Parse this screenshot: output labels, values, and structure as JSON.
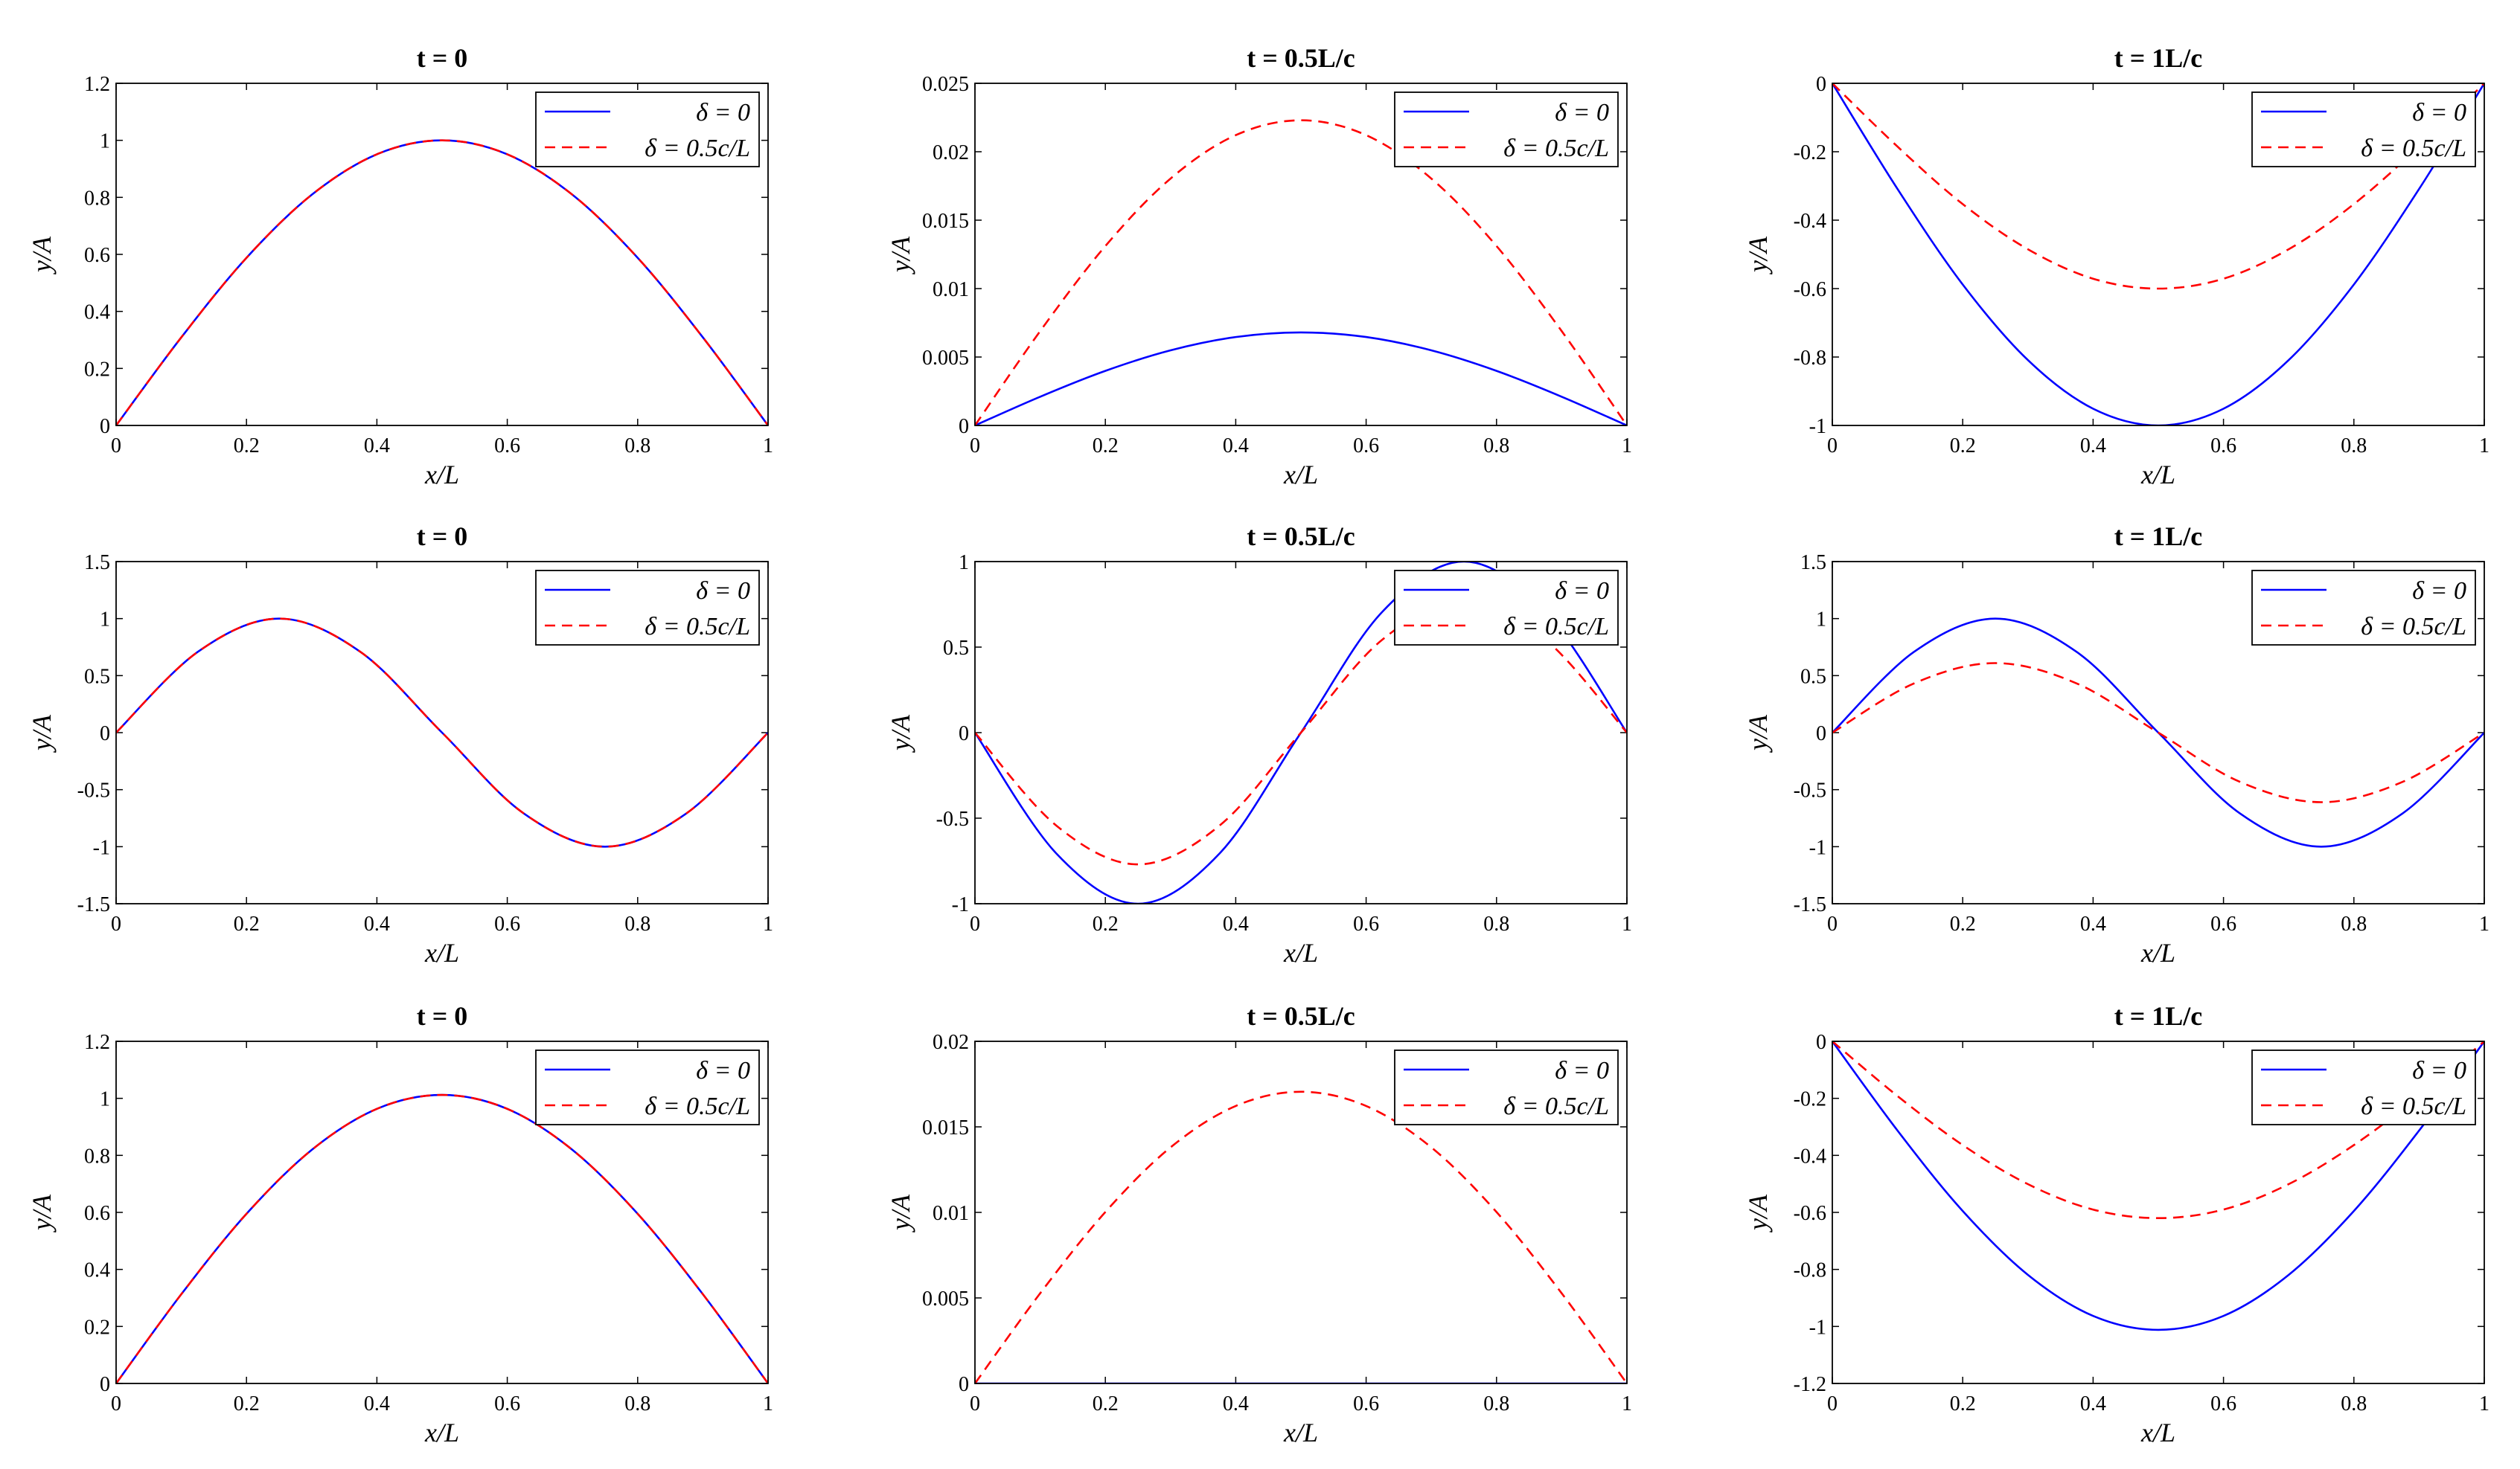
{
  "chart_data": [
    {
      "type": "line",
      "title": "t = 0",
      "xlabel": "x/L",
      "ylabel": "y/A",
      "xlim": [
        0,
        1
      ],
      "ylim": [
        0,
        1.2
      ],
      "xticks": [
        "0",
        "0.2",
        "0.4",
        "0.6",
        "0.8",
        "1"
      ],
      "yticks": [
        "0",
        "0.2",
        "0.4",
        "0.6",
        "0.8",
        "1",
        "1.2"
      ],
      "legend": "top-right",
      "grid": false,
      "series": [
        {
          "name": "δ = 0",
          "color": "#0000ff",
          "dash": "solid",
          "x": [
            0,
            0.1,
            0.2,
            0.3,
            0.4,
            0.5,
            0.6,
            0.7,
            0.8,
            0.9,
            1
          ],
          "y": [
            0,
            0.309,
            0.588,
            0.809,
            0.951,
            1,
            0.951,
            0.809,
            0.588,
            0.309,
            0
          ]
        },
        {
          "name": "δ = 0.5c/L",
          "color": "#ff0000",
          "dash": "dashed",
          "x": [
            0,
            0.1,
            0.2,
            0.3,
            0.4,
            0.5,
            0.6,
            0.7,
            0.8,
            0.9,
            1
          ],
          "y": [
            0,
            0.309,
            0.588,
            0.809,
            0.951,
            1,
            0.951,
            0.809,
            0.588,
            0.309,
            0
          ]
        }
      ]
    },
    {
      "type": "line",
      "title": "t = 0.5L/c",
      "xlabel": "x/L",
      "ylabel": "y/A",
      "xlim": [
        0,
        1
      ],
      "ylim": [
        0,
        0.025
      ],
      "xticks": [
        "0",
        "0.2",
        "0.4",
        "0.6",
        "0.8",
        "1"
      ],
      "yticks": [
        "0",
        "0.005",
        "0.01",
        "0.015",
        "0.02",
        "0.025"
      ],
      "legend": "top-right",
      "grid": false,
      "series": [
        {
          "name": "δ = 0",
          "color": "#0000ff",
          "dash": "solid",
          "x": [
            0,
            0.1,
            0.2,
            0.3,
            0.4,
            0.5,
            0.6,
            0.7,
            0.8,
            0.9,
            1
          ],
          "y": [
            0,
            0.0021,
            0.00399,
            0.00549,
            0.00646,
            0.0068,
            0.00646,
            0.00549,
            0.00399,
            0.0021,
            0
          ]
        },
        {
          "name": "δ = 0.5c/L",
          "color": "#ff0000",
          "dash": "dashed",
          "x": [
            0,
            0.1,
            0.2,
            0.3,
            0.4,
            0.5,
            0.6,
            0.7,
            0.8,
            0.9,
            1
          ],
          "y": [
            0,
            0.00689,
            0.01311,
            0.01804,
            0.02121,
            0.0223,
            0.02121,
            0.01804,
            0.01311,
            0.00689,
            0
          ]
        }
      ]
    },
    {
      "type": "line",
      "title": "t = 1L/c",
      "xlabel": "x/L",
      "ylabel": "y/A",
      "xlim": [
        0,
        1
      ],
      "ylim": [
        -1,
        0
      ],
      "xticks": [
        "0",
        "0.2",
        "0.4",
        "0.6",
        "0.8",
        "1"
      ],
      "yticks": [
        "-1",
        "-0.8",
        "-0.6",
        "-0.4",
        "-0.2",
        "0"
      ],
      "legend": "top-right",
      "grid": false,
      "series": [
        {
          "name": "δ = 0",
          "color": "#0000ff",
          "dash": "solid",
          "x": [
            0,
            0.1,
            0.2,
            0.3,
            0.4,
            0.5,
            0.6,
            0.7,
            0.8,
            0.9,
            1
          ],
          "y": [
            0,
            -0.309,
            -0.588,
            -0.809,
            -0.951,
            -1,
            -0.951,
            -0.809,
            -0.588,
            -0.309,
            0
          ]
        },
        {
          "name": "δ = 0.5c/L",
          "color": "#ff0000",
          "dash": "dashed",
          "x": [
            0,
            0.1,
            0.2,
            0.3,
            0.4,
            0.5,
            0.6,
            0.7,
            0.8,
            0.9,
            1
          ],
          "y": [
            0,
            -0.185,
            -0.353,
            -0.485,
            -0.571,
            -0.6,
            -0.571,
            -0.485,
            -0.353,
            -0.185,
            0
          ]
        }
      ]
    },
    {
      "type": "line",
      "title": "t = 0",
      "xlabel": "x/L",
      "ylabel": "y/A",
      "xlim": [
        0,
        1
      ],
      "ylim": [
        -1.5,
        1.5
      ],
      "xticks": [
        "0",
        "0.2",
        "0.4",
        "0.6",
        "0.8",
        "1"
      ],
      "yticks": [
        "-1.5",
        "-1",
        "-0.5",
        "0",
        "0.5",
        "1",
        "1.5"
      ],
      "legend": "top-right",
      "grid": false,
      "series": [
        {
          "name": "δ = 0",
          "color": "#0000ff",
          "dash": "solid",
          "x": [
            0,
            0.125,
            0.25,
            0.375,
            0.5,
            0.625,
            0.75,
            0.875,
            1
          ],
          "y": [
            0,
            0.707,
            1,
            0.707,
            0,
            -0.707,
            -1,
            -0.707,
            0
          ]
        },
        {
          "name": "δ = 0.5c/L",
          "color": "#ff0000",
          "dash": "dashed",
          "x": [
            0,
            0.125,
            0.25,
            0.375,
            0.5,
            0.625,
            0.75,
            0.875,
            1
          ],
          "y": [
            0,
            0.707,
            1,
            0.707,
            0,
            -0.707,
            -1,
            -0.707,
            0
          ]
        }
      ]
    },
    {
      "type": "line",
      "title": "t = 0.5L/c",
      "xlabel": "x/L",
      "ylabel": "y/A",
      "xlim": [
        0,
        1
      ],
      "ylim": [
        -1,
        1
      ],
      "xticks": [
        "0",
        "0.2",
        "0.4",
        "0.6",
        "0.8",
        "1"
      ],
      "yticks": [
        "-1",
        "-0.5",
        "0",
        "0.5",
        "1"
      ],
      "legend": "top-right",
      "grid": false,
      "series": [
        {
          "name": "δ = 0",
          "color": "#0000ff",
          "dash": "solid",
          "x": [
            0,
            0.125,
            0.25,
            0.375,
            0.5,
            0.625,
            0.75,
            0.875,
            1
          ],
          "y": [
            0,
            -0.707,
            -1,
            -0.707,
            0,
            0.707,
            1,
            0.707,
            0
          ]
        },
        {
          "name": "δ = 0.5c/L",
          "color": "#ff0000",
          "dash": "dashed",
          "x": [
            0,
            0.125,
            0.25,
            0.375,
            0.5,
            0.625,
            0.75,
            0.875,
            1
          ],
          "y": [
            0,
            -0.544,
            -0.77,
            -0.544,
            0,
            0.544,
            0.77,
            0.544,
            0
          ]
        }
      ]
    },
    {
      "type": "line",
      "title": "t = 1L/c",
      "xlabel": "x/L",
      "ylabel": "y/A",
      "xlim": [
        0,
        1
      ],
      "ylim": [
        -1.5,
        1.5
      ],
      "xticks": [
        "0",
        "0.2",
        "0.4",
        "0.6",
        "0.8",
        "1"
      ],
      "yticks": [
        "-1.5",
        "-1",
        "-0.5",
        "0",
        "0.5",
        "1",
        "1.5"
      ],
      "legend": "top-right",
      "grid": false,
      "series": [
        {
          "name": "δ = 0",
          "color": "#0000ff",
          "dash": "solid",
          "x": [
            0,
            0.125,
            0.25,
            0.375,
            0.5,
            0.625,
            0.75,
            0.875,
            1
          ],
          "y": [
            0,
            0.707,
            1,
            0.707,
            0,
            -0.707,
            -1,
            -0.707,
            0
          ]
        },
        {
          "name": "δ = 0.5c/L",
          "color": "#ff0000",
          "dash": "dashed",
          "x": [
            0,
            0.125,
            0.25,
            0.375,
            0.5,
            0.625,
            0.75,
            0.875,
            1
          ],
          "y": [
            0,
            0.431,
            0.61,
            0.431,
            0,
            -0.431,
            -0.61,
            -0.431,
            0
          ]
        }
      ]
    },
    {
      "type": "line",
      "title": "t = 0",
      "xlabel": "x/L",
      "ylabel": "y/A",
      "xlim": [
        0,
        1
      ],
      "ylim": [
        0,
        1.2
      ],
      "xticks": [
        "0",
        "0.2",
        "0.4",
        "0.6",
        "0.8",
        "1"
      ],
      "yticks": [
        "0",
        "0.2",
        "0.4",
        "0.6",
        "0.8",
        "1",
        "1.2"
      ],
      "legend": "top-right",
      "grid": false,
      "series": [
        {
          "name": "δ = 0",
          "color": "#0000ff",
          "dash": "solid",
          "x": [
            0,
            0.1,
            0.2,
            0.3,
            0.4,
            0.5,
            0.6,
            0.7,
            0.8,
            0.9,
            1
          ],
          "y": [
            0,
            0.313,
            0.595,
            0.819,
            0.963,
            1.012,
            0.963,
            0.819,
            0.595,
            0.313,
            0
          ]
        },
        {
          "name": "δ = 0.5c/L",
          "color": "#ff0000",
          "dash": "dashed",
          "x": [
            0,
            0.1,
            0.2,
            0.3,
            0.4,
            0.5,
            0.6,
            0.7,
            0.8,
            0.9,
            1
          ],
          "y": [
            0,
            0.313,
            0.595,
            0.819,
            0.963,
            1.012,
            0.963,
            0.819,
            0.595,
            0.313,
            0
          ]
        }
      ]
    },
    {
      "type": "line",
      "title": "t = 0.5L/c",
      "xlabel": "x/L",
      "ylabel": "y/A",
      "xlim": [
        0,
        1
      ],
      "ylim": [
        0,
        0.02
      ],
      "xticks": [
        "0",
        "0.2",
        "0.4",
        "0.6",
        "0.8",
        "1"
      ],
      "yticks": [
        "0",
        "0.005",
        "0.01",
        "0.015",
        "0.02"
      ],
      "legend": "top-right",
      "grid": false,
      "series": [
        {
          "name": "δ = 0",
          "color": "#0000ff",
          "dash": "solid",
          "x": [
            0,
            0.1,
            0.2,
            0.3,
            0.4,
            0.5,
            0.6,
            0.7,
            0.8,
            0.9,
            1
          ],
          "y": [
            0,
            0,
            0,
            0,
            0,
            0,
            0,
            0,
            0,
            0,
            0
          ]
        },
        {
          "name": "δ = 0.5c/L",
          "color": "#ff0000",
          "dash": "dashed",
          "x": [
            0,
            0.1,
            0.2,
            0.3,
            0.4,
            0.5,
            0.6,
            0.7,
            0.8,
            0.9,
            1
          ],
          "y": [
            0,
            0.00527,
            0.01002,
            0.0138,
            0.01622,
            0.01705,
            0.01622,
            0.0138,
            0.01002,
            0.00527,
            0
          ]
        }
      ]
    },
    {
      "type": "line",
      "title": "t = 1L/c",
      "xlabel": "x/L",
      "ylabel": "y/A",
      "xlim": [
        0,
        1
      ],
      "ylim": [
        -1.2,
        0
      ],
      "xticks": [
        "0",
        "0.2",
        "0.4",
        "0.6",
        "0.8",
        "1"
      ],
      "yticks": [
        "-1.2",
        "-1",
        "-0.8",
        "-0.6",
        "-0.4",
        "-0.2",
        "0"
      ],
      "legend": "top-right",
      "grid": false,
      "series": [
        {
          "name": "δ = 0",
          "color": "#0000ff",
          "dash": "solid",
          "x": [
            0,
            0.1,
            0.2,
            0.3,
            0.4,
            0.5,
            0.6,
            0.7,
            0.8,
            0.9,
            1
          ],
          "y": [
            0,
            -0.313,
            -0.595,
            -0.819,
            -0.963,
            -1.012,
            -0.963,
            -0.819,
            -0.595,
            -0.313,
            0
          ]
        },
        {
          "name": "δ = 0.5c/L",
          "color": "#ff0000",
          "dash": "dashed",
          "x": [
            0,
            0.1,
            0.2,
            0.3,
            0.4,
            0.5,
            0.6,
            0.7,
            0.8,
            0.9,
            1
          ],
          "y": [
            0,
            -0.192,
            -0.364,
            -0.501,
            -0.59,
            -0.62,
            -0.59,
            -0.501,
            -0.364,
            -0.192,
            0
          ]
        }
      ]
    }
  ]
}
